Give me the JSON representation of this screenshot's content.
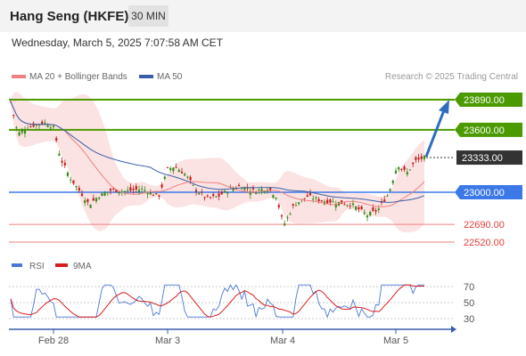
{
  "header": {
    "title": "Hang Seng (HKFE)",
    "timeframe": "30 MIN",
    "datetime": "Wednesday, March 5, 2025 7:07:58 AM CET"
  },
  "legend": {
    "ma20": "MA 20 + Bollinger Bands",
    "ma50": "MA 50",
    "ma20_color": "#f08080",
    "ma50_color": "#3a5ea8"
  },
  "credit": "Research © 2025 Trading Central",
  "chart_data": {
    "type": "candlestick",
    "ylim": [
      22450,
      23950
    ],
    "levels": [
      {
        "label": "23890.00",
        "value": 23890,
        "style": "resistance",
        "color": "#4a9a00"
      },
      {
        "label": "23600.00",
        "value": 23600,
        "style": "resistance",
        "color": "#4a9a00"
      },
      {
        "label": "23333.00",
        "value": 23333,
        "style": "current",
        "color": "#333333"
      },
      {
        "label": "23000.00",
        "value": 23000,
        "style": "pivot",
        "color": "#3c78e8"
      },
      {
        "label": "22690.00",
        "value": 22690,
        "style": "support",
        "color": "#e83c3c"
      },
      {
        "label": "22520.00",
        "value": 22520,
        "style": "support",
        "color": "#e83c3c"
      }
    ],
    "x_ticks": [
      "Feb 28",
      "Mar 3",
      "Mar 4",
      "Mar 5"
    ],
    "rsi": {
      "legend": [
        "RSI",
        "9MA"
      ],
      "colors": [
        "#4a78d8",
        "#d81e1e"
      ],
      "ylim": [
        20,
        80
      ],
      "ticks": [
        70,
        50,
        30
      ]
    }
  }
}
